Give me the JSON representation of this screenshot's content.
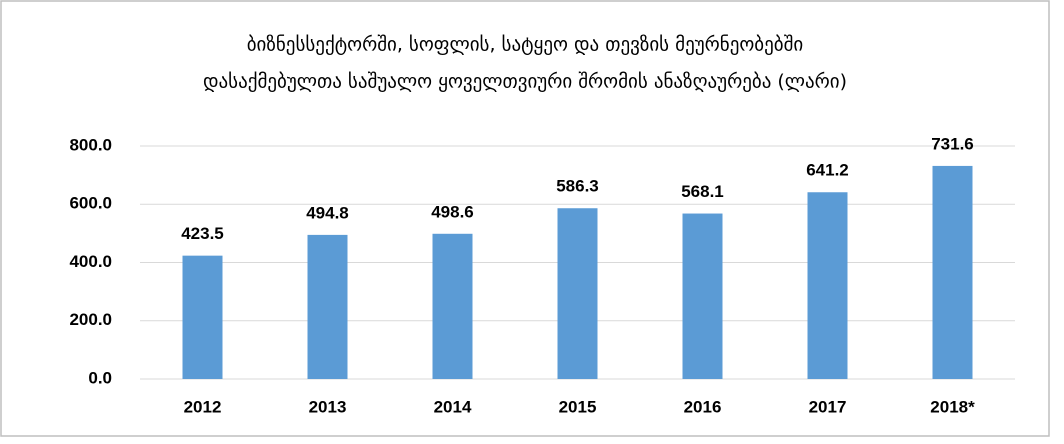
{
  "chart_data": {
    "type": "bar",
    "title": [
      "ბიზნესსექტორში, სოფლის, სატყეო და თევზის მეურნეობებში",
      "დასაქმებულთა საშუალო ყოველთვიური შრომის ანაზღაურება (ლარი)"
    ],
    "categories": [
      "2012",
      "2013",
      "2014",
      "2015",
      "2016",
      "2017",
      "2018*"
    ],
    "values": [
      423.5,
      494.8,
      498.6,
      586.3,
      568.1,
      641.2,
      731.6
    ],
    "color": "#5b9bd5",
    "ylim": [
      0,
      800
    ],
    "yticks": [
      {
        "value": 0,
        "label": "0.0"
      },
      {
        "value": 200,
        "label": "200.0"
      },
      {
        "value": 400,
        "label": "400.0"
      },
      {
        "value": 600,
        "label": "600.0"
      },
      {
        "value": 800,
        "label": "800.0"
      }
    ],
    "grid": true
  }
}
